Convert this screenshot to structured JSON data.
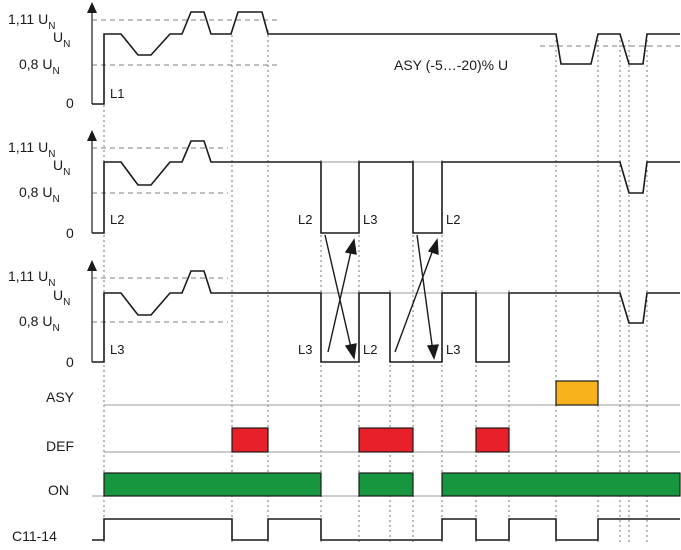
{
  "voltage_levels": {
    "v111_main": "1,11 U",
    "v111_sub": "N",
    "un_main": "U",
    "un_sub": "N",
    "v08_main": "0,8 U",
    "v08_sub": "N",
    "zero": "0"
  },
  "channels": {
    "l1": "L1",
    "l2": "L2",
    "l3": "L3"
  },
  "asy_note": "ASY (-5…-20)% U",
  "relays": {
    "asy": "ASY",
    "def": "DEF",
    "on": "ON",
    "c11_14": "C11-14"
  },
  "colors": {
    "signal": "#1a1a1a",
    "threshold_dash": "#555555",
    "reference_line": "#999999",
    "def_block": "#e8202a",
    "on_block": "#16963f",
    "asy_block": "#f7b21c"
  }
}
